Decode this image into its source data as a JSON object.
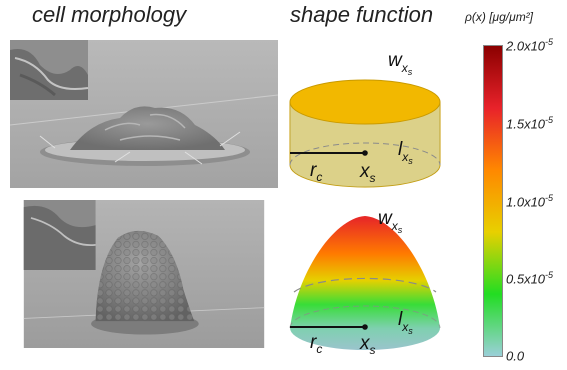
{
  "headings": {
    "left": "cell morphology",
    "right": "shape function"
  },
  "colorbar": {
    "title": "ρ(x) [μg/μm²]",
    "ticks": [
      {
        "base": "2.0x10",
        "exp": "-5"
      },
      {
        "base": "1.5x10",
        "exp": "-5"
      },
      {
        "base": "1.0x10",
        "exp": "-5"
      },
      {
        "base": "0.5x10",
        "exp": "-5"
      },
      {
        "base": "0.0",
        "exp": ""
      }
    ],
    "colors": [
      "#8b0000",
      "#e8222a",
      "#ff8800",
      "#e8d000",
      "#22dd22",
      "#9ad0d8"
    ]
  },
  "labels": {
    "w": "w",
    "l": "l",
    "r": "r",
    "r_sub": "c",
    "x": "x",
    "xs_sub": "x",
    "s_sub": "s"
  }
}
